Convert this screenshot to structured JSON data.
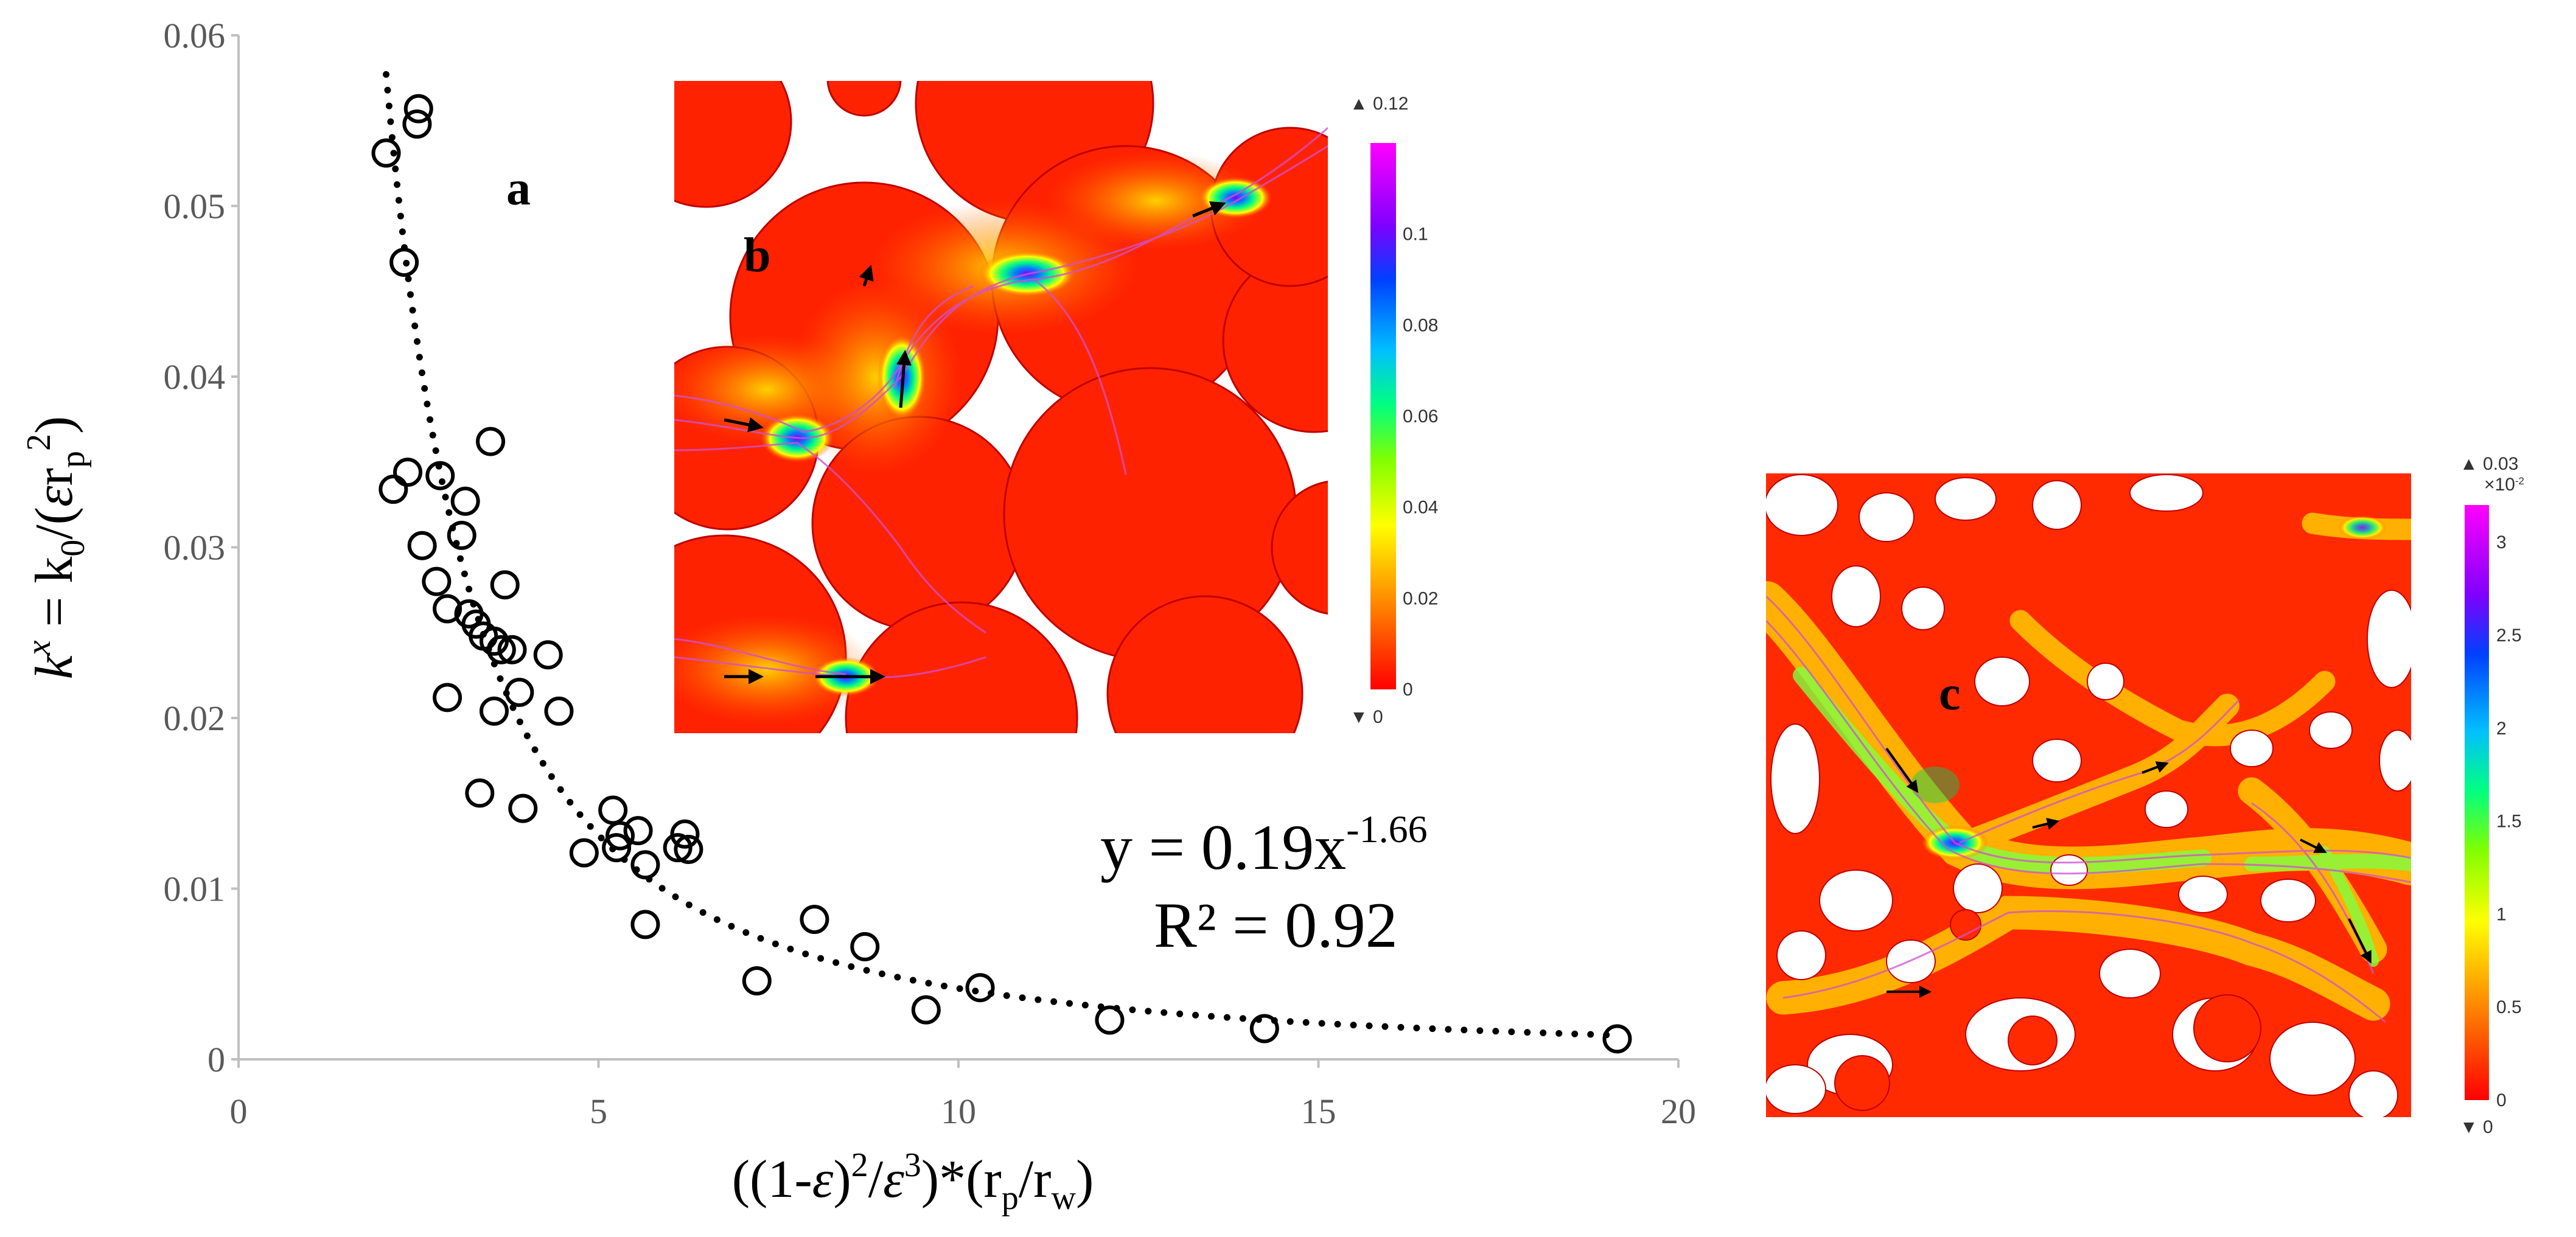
{
  "chart_data": {
    "type": "scatter",
    "xlabel_parts": [
      "((1-",
      "ε",
      ")",
      "2",
      "/",
      "ε",
      "3",
      ")*(r",
      "p",
      "/r",
      "w",
      ")"
    ],
    "ylabel_parts": [
      "k",
      "x",
      " = k",
      "0",
      "/(",
      "ε",
      "r",
      "p",
      "2",
      ")"
    ],
    "xlim": [
      0,
      20
    ],
    "ylim": [
      0,
      0.06
    ],
    "x_ticks": [
      "0",
      "5",
      "10",
      "15",
      "20"
    ],
    "y_ticks": [
      "0",
      "0.01",
      "0.02",
      "0.03",
      "0.04",
      "0.05",
      "0.06"
    ],
    "points": [
      [
        2.05,
        0.0531
      ],
      [
        2.5,
        0.0557
      ],
      [
        2.48,
        0.0548
      ],
      [
        2.3,
        0.0467
      ],
      [
        2.15,
        0.0334
      ],
      [
        2.35,
        0.0344
      ],
      [
        2.55,
        0.0301
      ],
      [
        2.75,
        0.028
      ],
      [
        2.8,
        0.0342
      ],
      [
        2.9,
        0.0264
      ],
      [
        2.9,
        0.0212
      ],
      [
        3.1,
        0.0307
      ],
      [
        3.15,
        0.0327
      ],
      [
        3.2,
        0.0261
      ],
      [
        3.3,
        0.0255
      ],
      [
        3.4,
        0.0248
      ],
      [
        3.5,
        0.0362
      ],
      [
        3.55,
        0.0245
      ],
      [
        3.55,
        0.0204
      ],
      [
        3.65,
        0.024
      ],
      [
        3.7,
        0.0278
      ],
      [
        3.8,
        0.024
      ],
      [
        3.9,
        0.0215
      ],
      [
        3.95,
        0.0147
      ],
      [
        4.3,
        0.0237
      ],
      [
        4.45,
        0.0204
      ],
      [
        3.35,
        0.0156
      ],
      [
        4.8,
        0.0121
      ],
      [
        5.2,
        0.0146
      ],
      [
        5.25,
        0.0124
      ],
      [
        5.3,
        0.0131
      ],
      [
        5.55,
        0.0134
      ],
      [
        5.65,
        0.0114
      ],
      [
        5.65,
        0.0079
      ],
      [
        6.1,
        0.0124
      ],
      [
        6.2,
        0.0132
      ],
      [
        6.25,
        0.0123
      ],
      [
        7.2,
        0.0046
      ],
      [
        8.0,
        0.0082
      ],
      [
        8.7,
        0.0066
      ],
      [
        9.55,
        0.0029
      ],
      [
        10.3,
        0.0042
      ],
      [
        12.1,
        0.0023
      ],
      [
        14.25,
        0.0018
      ],
      [
        19.15,
        0.0012
      ]
    ],
    "fit": {
      "a": 0.19,
      "b": -1.66,
      "x_start": 2.05,
      "x_end": 19.2
    },
    "equation": {
      "base": "y = 0.19x",
      "exponent": "-1.66"
    },
    "r_squared": "R² = 0.92",
    "panel_a_label": "a"
  },
  "insets": {
    "b": {
      "label": "b",
      "colorbar_max": "▲ 0.12",
      "colorbar_min": "▼ 0",
      "ticks": [
        "0.1",
        "0.08",
        "0.06",
        "0.04",
        "0.02",
        "0"
      ]
    },
    "c": {
      "label": "c",
      "colorbar_max": "▲ 0.03",
      "colorbar_scale": "×10",
      "colorbar_scale_exp": "-2",
      "colorbar_min": "▼ 0",
      "ticks": [
        "3",
        "2.5",
        "2",
        "1.5",
        "1",
        "0.5",
        "0"
      ]
    }
  },
  "colors": {
    "marker": "#000000",
    "axis": "#bfbfbf",
    "field_low": "#ff1a1a",
    "field_high": "#ff00ff"
  }
}
